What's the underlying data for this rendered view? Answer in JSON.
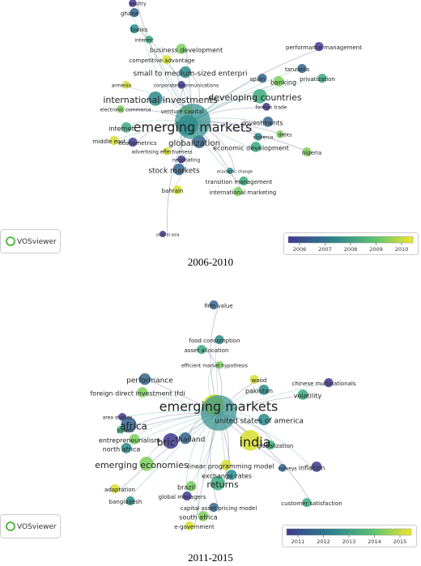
{
  "panels": [
    {
      "caption": "2006-2010",
      "logo": "VOSviewer",
      "nodes": [
        "poultry",
        "ghana",
        "banks",
        "interest",
        "business development",
        "competitive advantage",
        "performance management",
        "tanzania",
        "small to medium-sized enterpri",
        "privatization",
        "banking",
        "armenia",
        "corporate communications",
        "spain",
        "international investments",
        "developing countries",
        "electronic commerce",
        "venture capital",
        "foreign trade",
        "investments",
        "emerging markets",
        "internet",
        "debts",
        "middle east",
        "econometrics",
        "globalization",
        "slovenia",
        "economic development",
        "nigeria",
        "advertising effectiveness",
        "negotiating",
        "stock markets",
        "economic change",
        "transition management",
        "international marketing",
        "bahrain",
        "central asia"
      ],
      "colorbar": {
        "ticks": [
          2006,
          2007,
          2008,
          2009,
          2010
        ]
      }
    },
    {
      "caption": "2011-2015",
      "logo": "VOSviewer",
      "nodes": [
        "firm value",
        "food consumption",
        "asset allocation",
        "efficient market hypothesis",
        "wood",
        "chinese multinationals",
        "performance",
        "pakistan",
        "volatility",
        "foreign direct investment (fdi",
        "emerging markets",
        "area studies",
        "africa",
        "united states of america",
        "poland",
        "entrepreneurialism",
        "india",
        "bric",
        "thailand",
        "north africa",
        "globalization",
        "emerging economies",
        "linear programming model",
        "inflation",
        "surveys",
        "exchange rates",
        "returns",
        "brazil",
        "adaptation",
        "global managers",
        "capital asset pricing model",
        "bangladesh",
        "customer satisfaction",
        "south africa",
        "e-government"
      ],
      "colorbar": {
        "ticks": [
          2011,
          2012,
          2013,
          2014,
          2015
        ]
      }
    }
  ]
}
